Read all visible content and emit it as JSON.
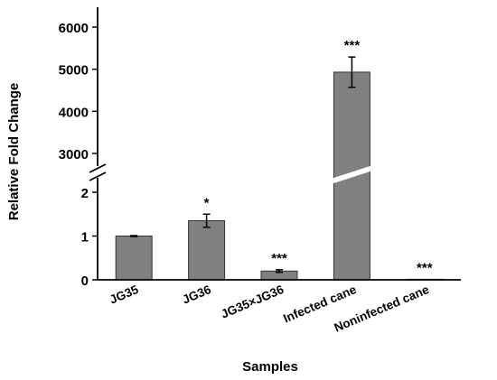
{
  "chart_data": {
    "type": "bar",
    "categories": [
      "JG35",
      "JG36",
      "JG35×JG36",
      "Infected cane",
      "Noninfected cane"
    ],
    "values": [
      1.0,
      1.35,
      0.2,
      4930,
      0.01
    ],
    "errors": [
      0.01,
      0.15,
      0.03,
      360,
      0.0
    ],
    "significance": [
      "",
      "*",
      "***",
      "***",
      "***"
    ],
    "xlabel": "Samples",
    "ylabel": "Relative Fold Change",
    "axis_break": true,
    "lower_segment": {
      "ylim": [
        0,
        2
      ],
      "ticks": [
        0,
        1,
        2
      ]
    },
    "upper_segment": {
      "ylim": [
        3000,
        6000
      ],
      "ticks": [
        3000,
        4000,
        5000,
        6000
      ]
    },
    "bar_color": "#808080",
    "grid": false,
    "legend": "none"
  }
}
